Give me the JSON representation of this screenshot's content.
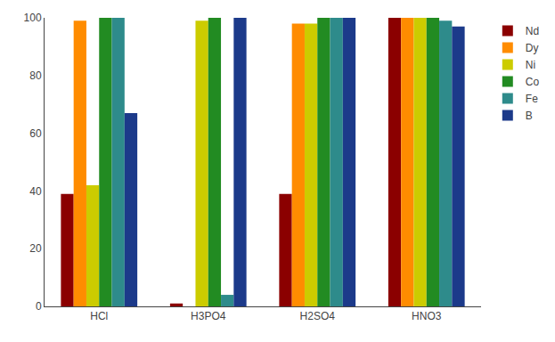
{
  "chart_data": {
    "type": "bar",
    "categories": [
      "HCl",
      "H3PO4",
      "H2SO4",
      "HNO3"
    ],
    "series": [
      {
        "name": "Nd",
        "color": "#8B0000",
        "values": [
          39,
          1,
          39,
          100
        ]
      },
      {
        "name": "Dy",
        "color": "#FF8C00",
        "values": [
          99,
          0,
          98,
          100
        ]
      },
      {
        "name": "Ni",
        "color": "#CCCC00",
        "values": [
          42,
          99,
          98,
          100
        ]
      },
      {
        "name": "Co",
        "color": "#228B22",
        "values": [
          100,
          100,
          100,
          100
        ]
      },
      {
        "name": "Fe",
        "color": "#2E8B8B",
        "values": [
          100,
          4,
          100,
          99
        ]
      },
      {
        "name": "B",
        "color": "#1C3A8A",
        "values": [
          67,
          100,
          100,
          97
        ]
      }
    ],
    "ylim": [
      0,
      100
    ],
    "yticks": [
      0,
      20,
      40,
      60,
      80,
      100
    ],
    "grid": false,
    "legend": "right"
  }
}
